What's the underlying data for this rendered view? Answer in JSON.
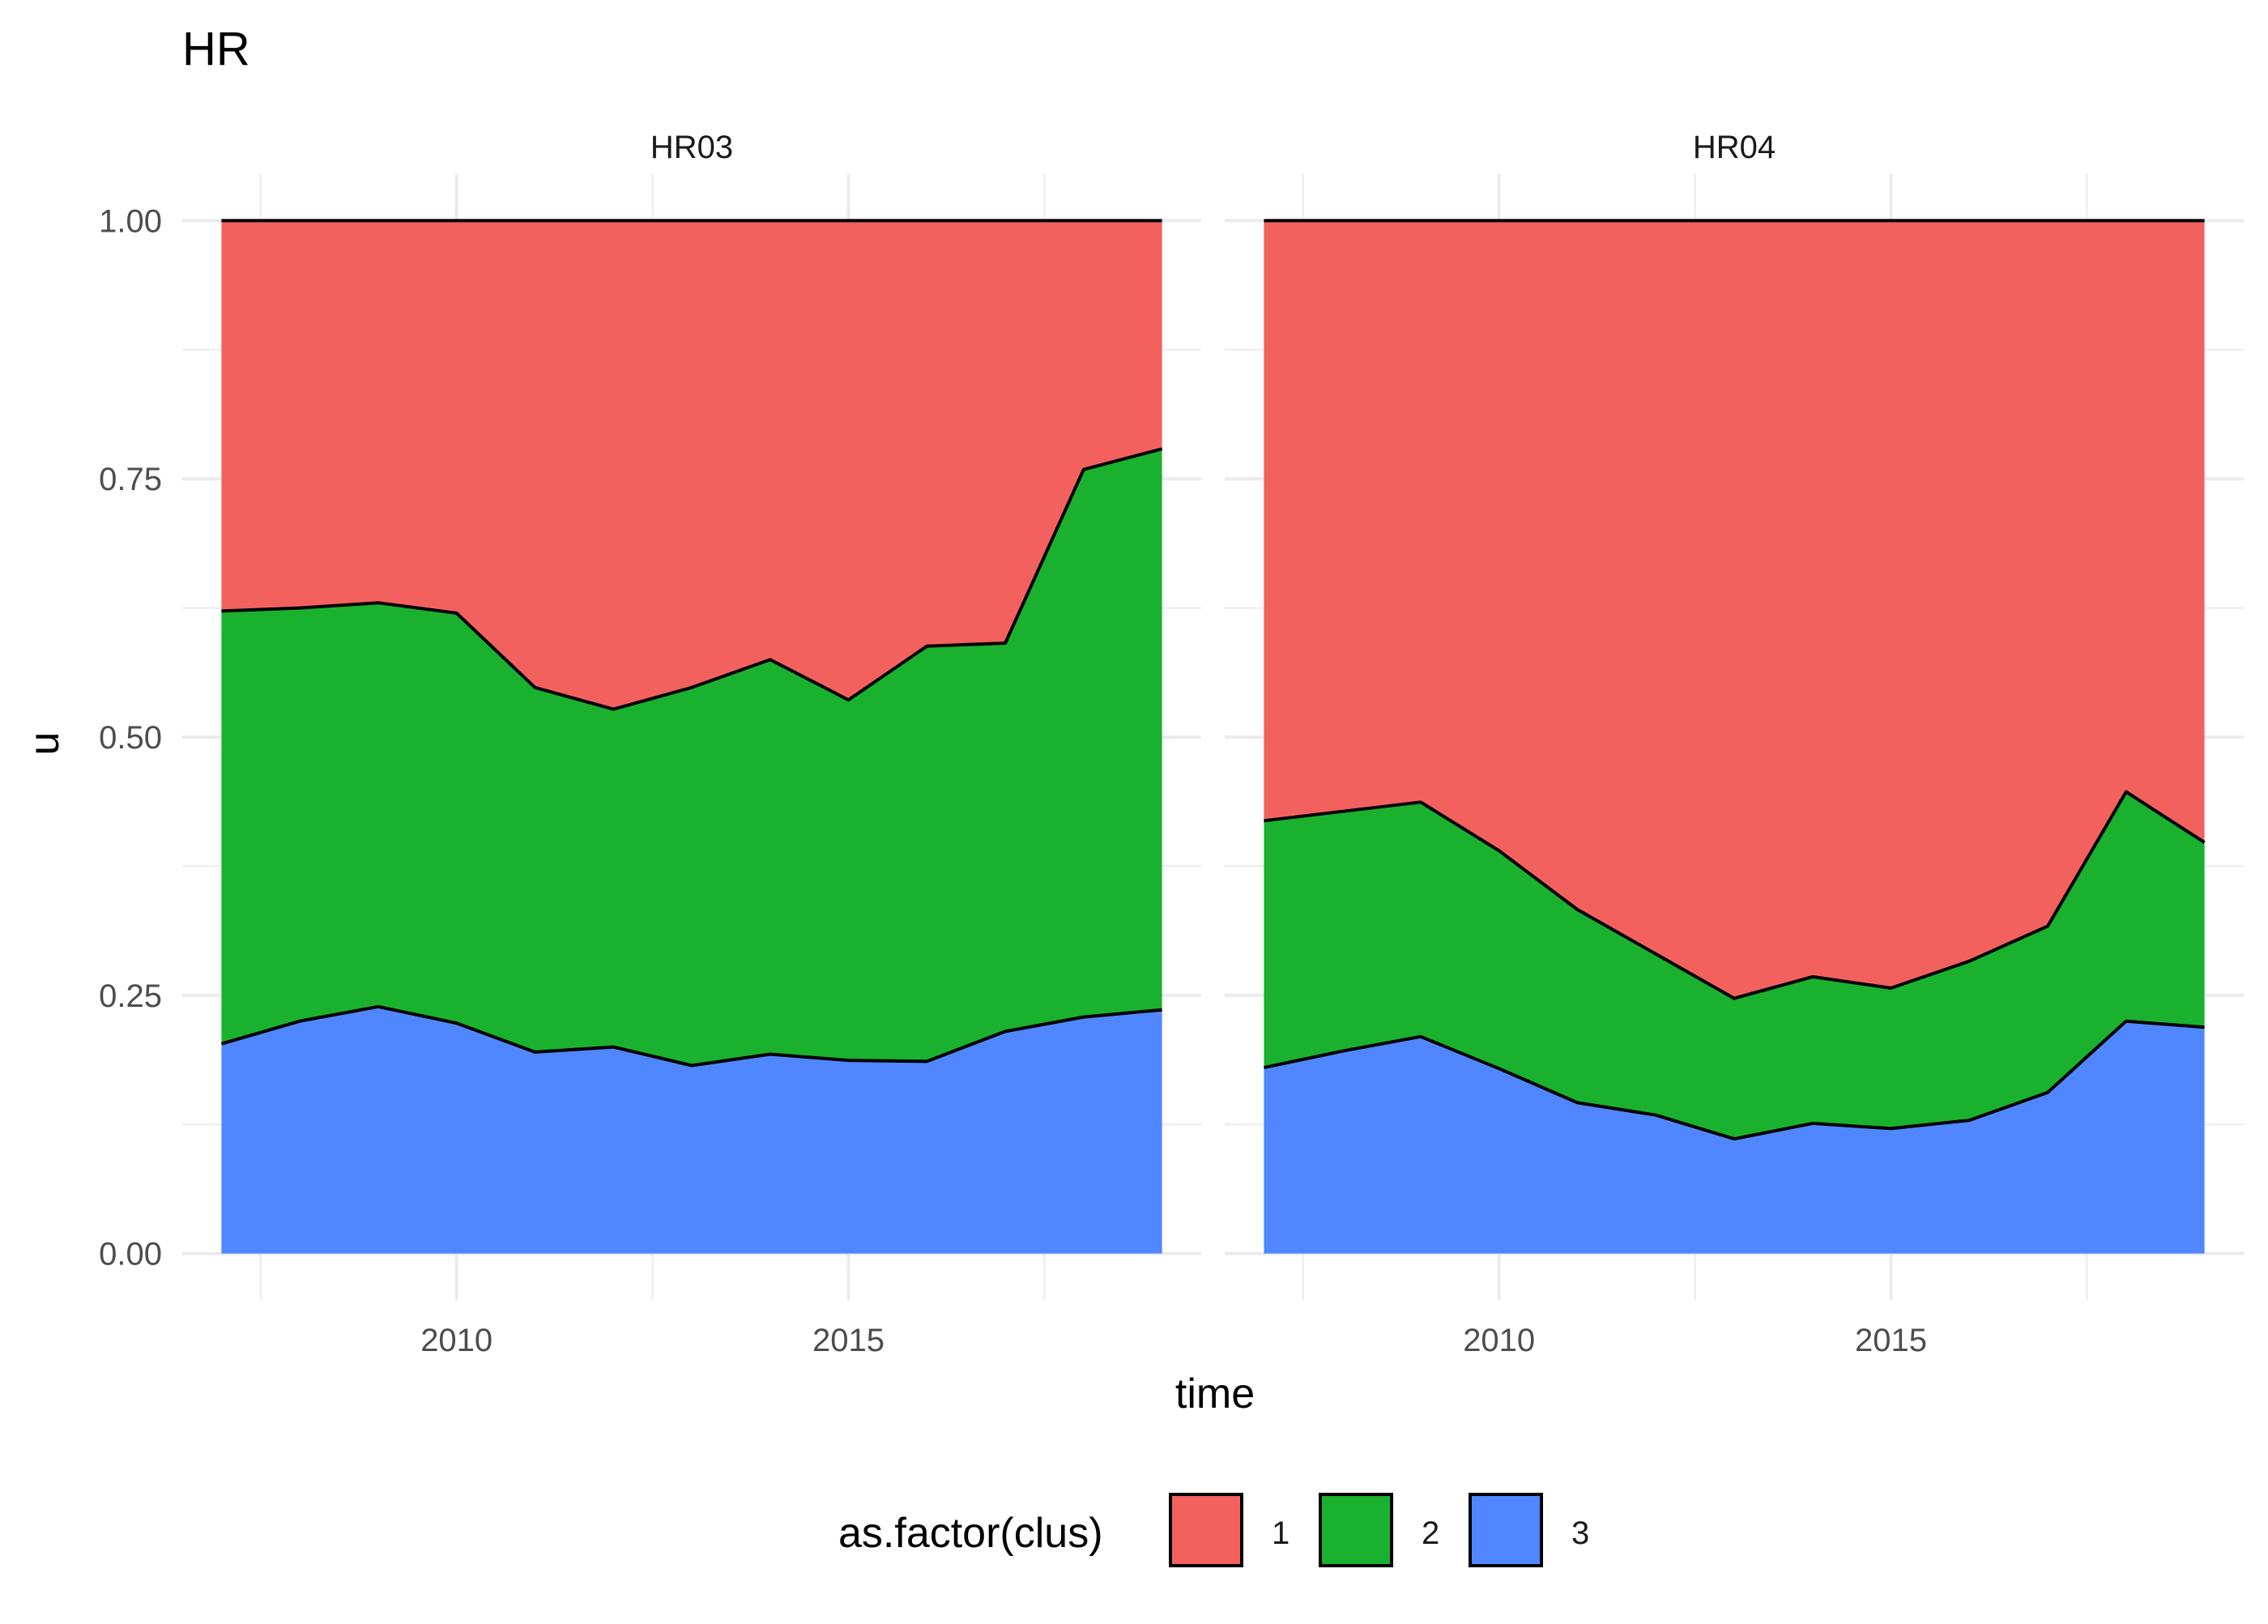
{
  "chart_data": {
    "type": "area",
    "stacked": true,
    "title": "HR",
    "xlabel": "time",
    "ylabel": "u",
    "xlim": [
      2006.5,
      2019.5
    ],
    "ylim": [
      -0.045,
      1.045
    ],
    "x_ticks": [
      2010,
      2015
    ],
    "x_tick_labels": [
      "2010",
      "2015"
    ],
    "y_ticks": [
      0,
      0.25,
      0.5,
      0.75,
      1
    ],
    "y_tick_labels": [
      "0.00",
      "0.25",
      "0.50",
      "0.75",
      "1.00"
    ],
    "grid": true,
    "legend": {
      "title": "as.factor(clus)",
      "position": "bottom",
      "entries": [
        "1",
        "2",
        "3"
      ]
    },
    "colors": {
      "1": "#F3615E",
      "2": "#1AB12F",
      "3": "#5086FF",
      "outline": "#000000",
      "grid": "#EBEBEB"
    },
    "panels": [
      {
        "label": "HR03",
        "x": [
          2007,
          2008,
          2009,
          2010,
          2011,
          2012,
          2013,
          2014,
          2015,
          2016,
          2017,
          2018,
          2019
        ],
        "series": [
          {
            "name": "1",
            "values": [
              0.378,
              0.375,
              0.37,
              0.38,
              0.452,
              0.473,
              0.452,
              0.425,
              0.464,
              0.412,
              0.409,
              0.241,
              0.221
            ]
          },
          {
            "name": "2",
            "values": [
              0.419,
              0.4,
              0.391,
              0.397,
              0.353,
              0.327,
              0.366,
              0.382,
              0.349,
              0.402,
              0.376,
              0.53,
              0.543
            ]
          },
          {
            "name": "3",
            "values": [
              0.203,
              0.225,
              0.239,
              0.223,
              0.195,
              0.2,
              0.182,
              0.193,
              0.187,
              0.186,
              0.215,
              0.229,
              0.236
            ]
          }
        ]
      },
      {
        "label": "HR04",
        "x": [
          2007,
          2008,
          2009,
          2010,
          2011,
          2012,
          2013,
          2014,
          2015,
          2016,
          2017,
          2018,
          2019
        ],
        "series": [
          {
            "name": "1",
            "values": [
              0.581,
              0.572,
              0.563,
              0.61,
              0.667,
              0.71,
              0.753,
              0.732,
              0.743,
              0.717,
              0.683,
              0.553,
              0.602
            ]
          },
          {
            "name": "2",
            "values": [
              0.239,
              0.232,
              0.227,
              0.211,
              0.187,
              0.156,
              0.136,
              0.142,
              0.136,
              0.154,
              0.161,
              0.222,
              0.179
            ]
          },
          {
            "name": "3",
            "values": [
              0.18,
              0.196,
              0.21,
              0.179,
              0.146,
              0.134,
              0.111,
              0.126,
              0.121,
              0.129,
              0.156,
              0.225,
              0.219
            ]
          }
        ]
      }
    ]
  }
}
